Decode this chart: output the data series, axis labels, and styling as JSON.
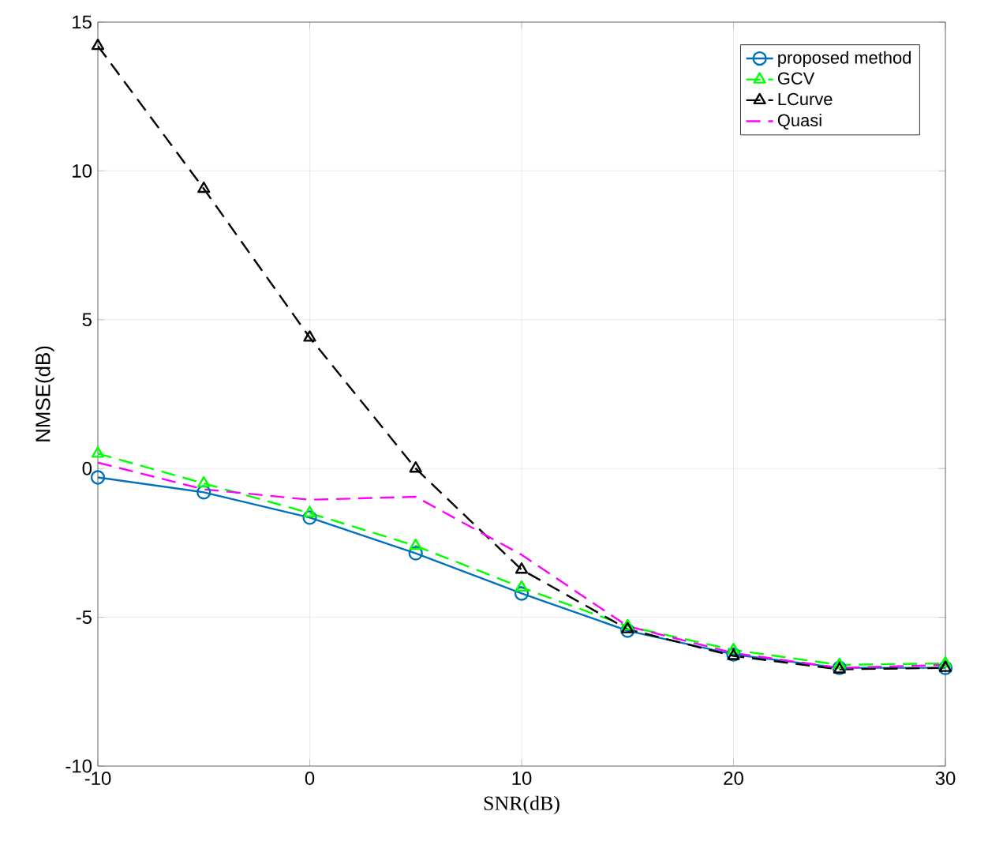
{
  "chart_data": {
    "type": "line",
    "xlabel": "SNR(dB)",
    "ylabel": "NMSE(dB)",
    "x": [
      -10,
      -5,
      0,
      5,
      10,
      15,
      20,
      25,
      30
    ],
    "xlim": [
      -10,
      30
    ],
    "ylim": [
      -10,
      15
    ],
    "xticks": [
      -10,
      0,
      10,
      20,
      30
    ],
    "yticks": [
      -10,
      -5,
      0,
      5,
      10,
      15
    ],
    "grid": true,
    "legend": "top right",
    "series": [
      {
        "name": "proposed method",
        "color": "#0072bd",
        "marker": "circle",
        "line_style": "solid",
        "values": [
          -0.3,
          -0.8,
          -1.65,
          -2.85,
          -4.2,
          -5.45,
          -6.25,
          -6.7,
          -6.7
        ]
      },
      {
        "name": "GCV",
        "color": "#00ff00",
        "marker": "triangle",
        "line_style": "dashed",
        "values": [
          0.5,
          -0.5,
          -1.5,
          -2.6,
          -4.0,
          -5.3,
          -6.1,
          -6.6,
          -6.55
        ]
      },
      {
        "name": "LCurve",
        "color": "#000000",
        "marker": "triangle",
        "line_style": "dashed",
        "values": [
          14.2,
          9.4,
          4.4,
          0.0,
          -3.4,
          -5.4,
          -6.3,
          -6.75,
          -6.7
        ]
      },
      {
        "name": "Quasi",
        "color": "#ff00ff",
        "marker": "none",
        "line_style": "dashed",
        "values": [
          0.2,
          -0.7,
          -1.05,
          -0.95,
          -2.9,
          -5.3,
          -6.2,
          -6.7,
          -6.6
        ]
      }
    ]
  }
}
